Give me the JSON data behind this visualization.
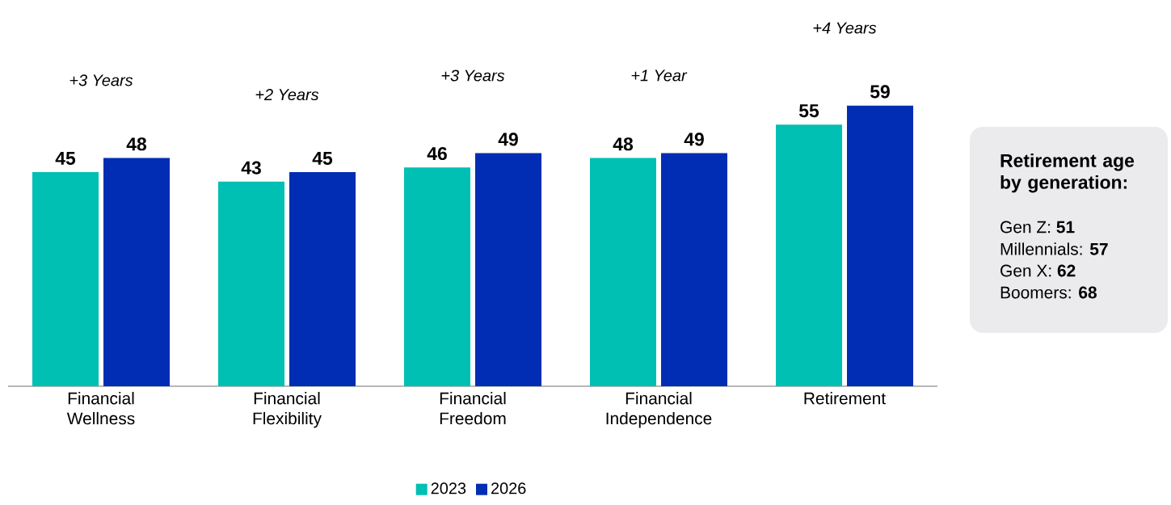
{
  "chart_data": [
    {
      "type": "bar",
      "categories": [
        "Financial Wellness",
        "Financial Flexibility",
        "Financial Freedom",
        "Financial Independence",
        "Retirement"
      ],
      "series": [
        {
          "name": "2023",
          "color": "#00bfb3",
          "values": [
            45,
            43,
            46,
            48,
            55
          ]
        },
        {
          "name": "2026",
          "color": "#002db3",
          "values": [
            48,
            45,
            49,
            49,
            59
          ]
        }
      ],
      "data_labels": true,
      "legend": "bottom",
      "annotations": [
        "+3 Years",
        "+2 Years",
        "+3 Years",
        "+1 Year",
        "+4 Years"
      ]
    },
    {
      "type": "other",
      "title": "Retirement age by generation:",
      "annotations": [
        "Gen Z: **51**",
        "Millennials: **57**",
        "Gen X: **62**",
        "Boomers: **68**"
      ]
    }
  ]
}
